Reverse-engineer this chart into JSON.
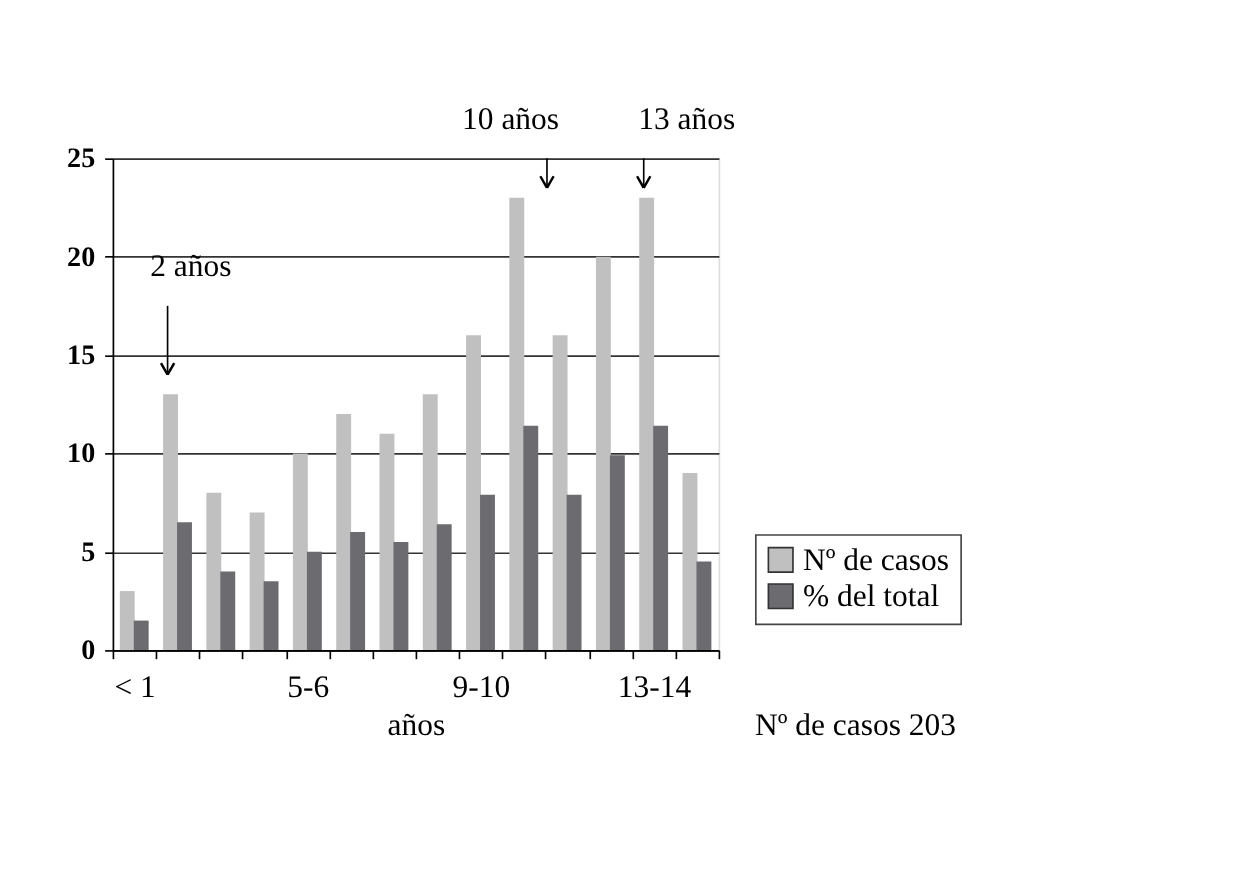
{
  "chart_data": {
    "type": "bar",
    "xlabel": "años",
    "categories": [
      "< 1",
      null,
      null,
      null,
      "5-6",
      null,
      null,
      null,
      "9-10",
      null,
      null,
      null,
      "13-14",
      null
    ],
    "series": [
      {
        "name": "Nº de casos",
        "color": "#c0c0c0",
        "values": [
          3,
          13,
          8,
          7,
          10,
          12,
          11,
          13,
          16,
          23,
          16,
          20,
          23,
          9
        ]
      },
      {
        "name": "% del total",
        "color": "#6b6b70",
        "values": [
          1.5,
          6.5,
          4,
          3.5,
          5,
          6,
          5.5,
          6.4,
          7.9,
          11.4,
          7.9,
          9.9,
          11.4,
          4.5
        ]
      }
    ],
    "ylim": [
      0,
      25
    ],
    "yticks": [
      0,
      5,
      10,
      15,
      20,
      25
    ],
    "grid": "y",
    "legend": "right",
    "annotations": [
      "2 años",
      "10 años",
      "13 años",
      "Nº de casos 203"
    ]
  }
}
